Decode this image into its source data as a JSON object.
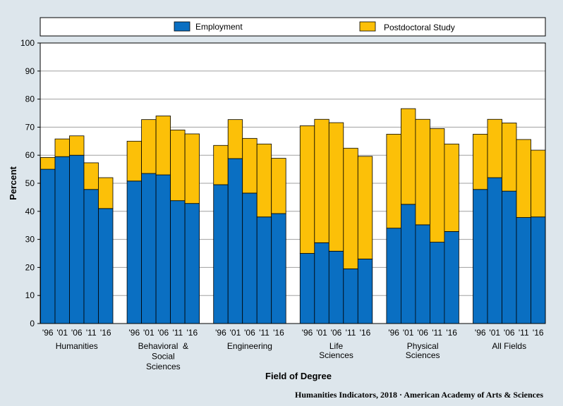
{
  "chart_data": {
    "type": "bar",
    "stacked": true,
    "xlabel": "Field of Degree",
    "ylabel": "Percent",
    "ylim": [
      0,
      100
    ],
    "yticks": [
      0,
      10,
      20,
      30,
      40,
      50,
      60,
      70,
      80,
      90,
      100
    ],
    "grid": true,
    "legend_position": "top",
    "tick_labels": [
      "'96",
      "'01",
      "'06",
      "'11",
      "'16"
    ],
    "groups": [
      {
        "label_lines": [
          "Humanities"
        ]
      },
      {
        "label_lines": [
          "Behavioral  &",
          "Social",
          "Sciences"
        ]
      },
      {
        "label_lines": [
          "Engineering"
        ]
      },
      {
        "label_lines": [
          "Life",
          "Sciences"
        ]
      },
      {
        "label_lines": [
          "Physical",
          "Sciences"
        ]
      },
      {
        "label_lines": [
          "All Fields"
        ]
      }
    ],
    "series": [
      {
        "name": "Employment",
        "color": "#0a6fc2",
        "values": [
          [
            55.0,
            59.5,
            60.0,
            47.8,
            41.0
          ],
          [
            50.8,
            53.5,
            53.0,
            43.8,
            42.8
          ],
          [
            49.5,
            58.8,
            46.5,
            38.0,
            39.2
          ],
          [
            25.0,
            28.8,
            25.8,
            19.5,
            23.0
          ],
          [
            34.0,
            42.5,
            35.2,
            29.0,
            32.8
          ],
          [
            47.8,
            52.0,
            47.2,
            37.8,
            38.0
          ]
        ]
      },
      {
        "name": "Postdoctoral Study",
        "color": "#fcc008",
        "values": [
          [
            4.2,
            6.3,
            6.9,
            9.5,
            11.0
          ],
          [
            14.2,
            19.2,
            21.0,
            25.2,
            24.8
          ],
          [
            14.0,
            13.9,
            19.5,
            26.0,
            19.7
          ],
          [
            45.5,
            44.0,
            45.8,
            43.0,
            36.6
          ],
          [
            33.5,
            34.1,
            37.6,
            40.5,
            31.2
          ],
          [
            19.7,
            20.8,
            24.3,
            27.8,
            23.8
          ]
        ]
      }
    ]
  },
  "footer": {
    "source": "Humanities Indicators, 2018 · American Academy of Arts & Sciences"
  }
}
